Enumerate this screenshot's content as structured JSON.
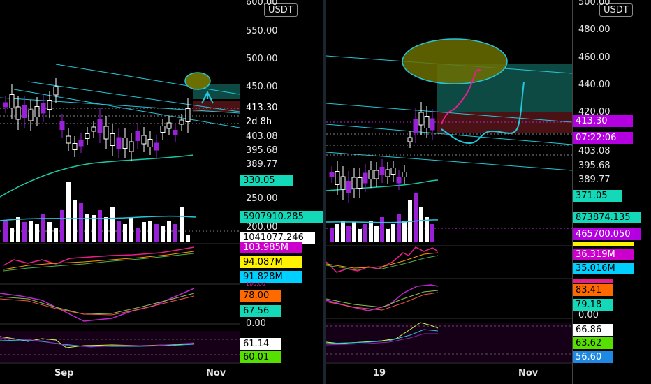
{
  "colors": {
    "up": "#ffffff",
    "down": "#9a20d8",
    "channel": "#26c6da",
    "ma": "#19c9a6",
    "note": "#e91e8c",
    "ellipse": "#6b6e00",
    "box_green": "#0e4a44",
    "box_red": "#4a1214",
    "badge_green": "#14d9b8",
    "badge_purple": "#b400e0",
    "badge_yellow": "#fff200",
    "badge_orange": "#ff6a00",
    "badge_cyan": "#00d0ff",
    "badge_lime": "#55e000",
    "badge_blue": "#1e88e5",
    "badge_magenta": "#cc00cc"
  },
  "left": {
    "currency": "USDT",
    "ticks": [
      "600.00",
      "550.00",
      "500.00",
      "450.00",
      "403.08",
      "395.68",
      "389.77",
      "250.00",
      "200.00",
      "100.00",
      "0.00"
    ],
    "badges": {
      "last_price": "413.30",
      "countdown": "2d 8h",
      "ma": "330.05",
      "vol1": "5907910.285",
      "vol2": "1041077.246",
      "ind1_a": "103.985M",
      "ind1_b": "94.087M",
      "ind1_c": "91.828M",
      "ind2_a": "78.00",
      "ind2_b": "67.56",
      "ind3_a": "61.14",
      "ind3_b": "60.01"
    },
    "x_labels": [
      "Sep",
      "Nov"
    ]
  },
  "right": {
    "currency": "USDT",
    "ticks": [
      "500.00",
      "480.00",
      "460.00",
      "440.00",
      "420.00",
      "403.08",
      "395.68",
      "389.77",
      "0.00"
    ],
    "badges": {
      "last_price": "413.30",
      "countdown": "07:22:06",
      "ma": "371.05",
      "vol1": "873874.135",
      "vol2": "465700.050",
      "ind1_a": "36.319M",
      "ind1_b": "35.016M",
      "ind2_a": "83.41",
      "ind2_b": "79.18",
      "ind3_a": "66.86",
      "ind3_b": "63.62",
      "ind3_c": "56.60"
    },
    "x_labels": [
      "19",
      "Nov"
    ]
  }
}
